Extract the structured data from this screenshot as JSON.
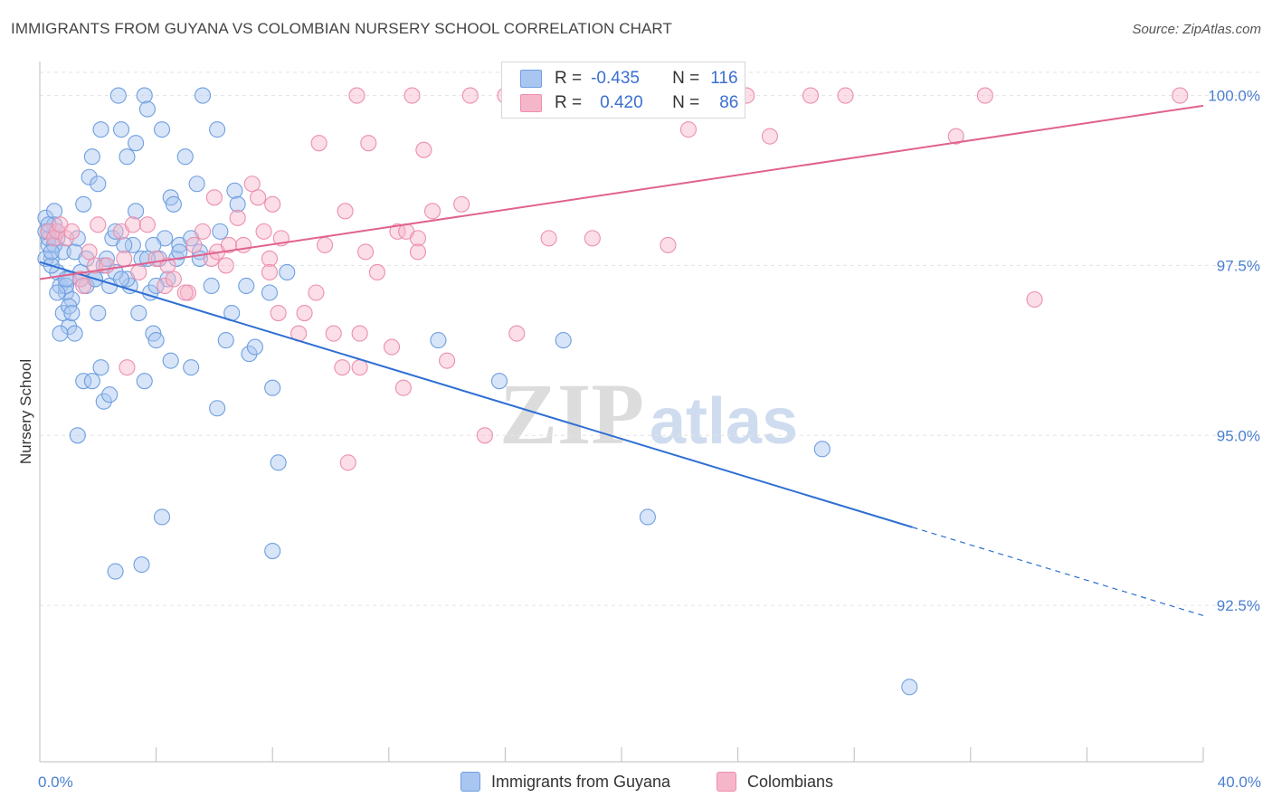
{
  "title": "IMMIGRANTS FROM GUYANA VS COLOMBIAN NURSERY SCHOOL CORRELATION CHART",
  "source": "Source: ZipAtlas.com",
  "watermark": {
    "zip": "ZIP",
    "atlas": "atlas"
  },
  "legend": {
    "rows": [
      {
        "r_label": "R =",
        "r_value": "-0.435",
        "n_label": "N =",
        "n_value": "116",
        "color": "#a9c6f0"
      },
      {
        "r_label": "R =",
        "r_value": "0.420",
        "n_label": "N =",
        "n_value": "86",
        "color": "#f6b6c9"
      }
    ]
  },
  "bottom_legend": [
    {
      "label": "Immigrants from Guyana",
      "color": "#a9c6f0"
    },
    {
      "label": "Colombians",
      "color": "#f6b6c9"
    }
  ],
  "chart_data": {
    "type": "scatter",
    "ylabel": "Nursery School",
    "xlim": [
      0,
      40
    ],
    "ylim": [
      90.2,
      100.5
    ],
    "y_ticks": [
      {
        "value": 100.0,
        "label": "100.0%"
      },
      {
        "value": 97.5,
        "label": "97.5%"
      },
      {
        "value": 95.0,
        "label": "95.0%"
      },
      {
        "value": 92.5,
        "label": "92.5%"
      }
    ],
    "x_tick_labels": [
      {
        "value": 0,
        "label": "0.0%"
      },
      {
        "value": 40,
        "label": "40.0%"
      }
    ],
    "series": [
      {
        "name": "Immigrants from Guyana",
        "color": "#6f9fe0",
        "fill": "#a9c6f0",
        "trend": {
          "x0": 0,
          "y0": 97.55,
          "x1": 30,
          "y1": 93.65,
          "dash_to_x": 40,
          "dash_to_y": 92.35,
          "color": "#2e6fd3"
        },
        "points": [
          [
            0.2,
            98.2
          ],
          [
            0.3,
            98.0
          ],
          [
            0.3,
            97.8
          ],
          [
            0.4,
            97.6
          ],
          [
            0.5,
            98.3
          ],
          [
            0.5,
            98.1
          ],
          [
            0.6,
            97.4
          ],
          [
            0.7,
            97.2
          ],
          [
            0.6,
            97.9
          ],
          [
            0.8,
            97.7
          ],
          [
            0.8,
            96.8
          ],
          [
            0.9,
            97.1
          ],
          [
            1.0,
            96.6
          ],
          [
            1.0,
            97.3
          ],
          [
            1.1,
            97.0
          ],
          [
            1.2,
            96.5
          ],
          [
            1.2,
            97.7
          ],
          [
            1.3,
            97.9
          ],
          [
            1.4,
            97.4
          ],
          [
            1.5,
            98.4
          ],
          [
            1.6,
            97.6
          ],
          [
            1.7,
            98.8
          ],
          [
            1.8,
            99.1
          ],
          [
            1.9,
            97.3
          ],
          [
            2.0,
            96.8
          ],
          [
            2.0,
            98.7
          ],
          [
            2.1,
            99.5
          ],
          [
            2.2,
            97.5
          ],
          [
            2.4,
            97.2
          ],
          [
            2.5,
            97.9
          ],
          [
            2.6,
            98.0
          ],
          [
            2.7,
            100.0
          ],
          [
            2.8,
            99.5
          ],
          [
            3.0,
            99.1
          ],
          [
            3.1,
            97.2
          ],
          [
            3.2,
            97.8
          ],
          [
            3.3,
            99.3
          ],
          [
            3.3,
            98.3
          ],
          [
            3.4,
            96.8
          ],
          [
            3.5,
            97.6
          ],
          [
            3.6,
            100.0
          ],
          [
            3.7,
            99.8
          ],
          [
            3.8,
            97.1
          ],
          [
            3.9,
            96.5
          ],
          [
            4.0,
            96.4
          ],
          [
            4.1,
            97.6
          ],
          [
            4.2,
            99.5
          ],
          [
            4.3,
            97.9
          ],
          [
            4.4,
            97.3
          ],
          [
            4.5,
            98.5
          ],
          [
            4.6,
            98.4
          ],
          [
            4.7,
            97.6
          ],
          [
            4.8,
            97.8
          ],
          [
            5.0,
            99.1
          ],
          [
            5.2,
            97.9
          ],
          [
            5.4,
            98.7
          ],
          [
            5.5,
            97.7
          ],
          [
            5.6,
            100.0
          ],
          [
            5.9,
            97.2
          ],
          [
            6.1,
            99.5
          ],
          [
            6.2,
            98.0
          ],
          [
            6.4,
            96.4
          ],
          [
            6.7,
            98.6
          ],
          [
            6.8,
            98.4
          ],
          [
            7.1,
            97.2
          ],
          [
            7.2,
            96.2
          ],
          [
            7.4,
            96.3
          ],
          [
            7.9,
            97.1
          ],
          [
            8.0,
            95.7
          ],
          [
            8.5,
            97.4
          ],
          [
            1.3,
            95.0
          ],
          [
            1.5,
            95.8
          ],
          [
            1.8,
            95.8
          ],
          [
            2.1,
            96.0
          ],
          [
            2.2,
            95.5
          ],
          [
            2.4,
            95.6
          ],
          [
            3.6,
            95.8
          ],
          [
            4.5,
            96.1
          ],
          [
            5.2,
            96.0
          ],
          [
            6.1,
            95.4
          ],
          [
            4.2,
            93.8
          ],
          [
            2.6,
            93.0
          ],
          [
            3.5,
            93.1
          ],
          [
            8.2,
            94.6
          ],
          [
            8.0,
            93.3
          ],
          [
            13.7,
            96.4
          ],
          [
            15.8,
            95.8
          ],
          [
            18.0,
            96.4
          ],
          [
            26.9,
            94.8
          ],
          [
            20.9,
            93.8
          ],
          [
            29.9,
            91.3
          ],
          [
            0.2,
            97.6
          ],
          [
            0.3,
            97.9
          ],
          [
            0.4,
            97.5
          ],
          [
            0.6,
            98.0
          ],
          [
            0.9,
            97.2
          ],
          [
            1.0,
            96.9
          ],
          [
            1.6,
            97.2
          ],
          [
            1.9,
            97.3
          ],
          [
            0.5,
            97.8
          ],
          [
            0.7,
            96.5
          ],
          [
            2.9,
            97.8
          ],
          [
            3.9,
            97.8
          ],
          [
            5.5,
            97.6
          ],
          [
            0.2,
            98.0
          ],
          [
            0.4,
            97.7
          ],
          [
            2.3,
            97.6
          ],
          [
            3.0,
            97.3
          ],
          [
            4.8,
            97.7
          ],
          [
            0.3,
            98.1
          ],
          [
            0.9,
            97.3
          ],
          [
            1.4,
            97.3
          ],
          [
            2.6,
            97.4
          ],
          [
            6.6,
            96.8
          ],
          [
            0.6,
            97.1
          ],
          [
            1.1,
            96.8
          ],
          [
            2.8,
            97.3
          ],
          [
            3.7,
            97.6
          ],
          [
            4.0,
            97.2
          ]
        ]
      },
      {
        "name": "Colombians",
        "color": "#ec8fae",
        "fill": "#f6b6c9",
        "trend": {
          "x0": 0,
          "y0": 97.3,
          "x1": 40,
          "y1": 99.85,
          "color": "#e0628e"
        },
        "points": [
          [
            0.3,
            98.0
          ],
          [
            0.5,
            97.9
          ],
          [
            0.6,
            98.0
          ],
          [
            0.7,
            98.1
          ],
          [
            0.9,
            97.9
          ],
          [
            1.1,
            98.0
          ],
          [
            1.4,
            97.3
          ],
          [
            1.5,
            97.2
          ],
          [
            1.7,
            97.7
          ],
          [
            1.9,
            97.5
          ],
          [
            2.0,
            98.1
          ],
          [
            2.3,
            97.5
          ],
          [
            2.8,
            98.0
          ],
          [
            2.9,
            97.6
          ],
          [
            3.2,
            98.1
          ],
          [
            3.4,
            97.4
          ],
          [
            3.7,
            98.1
          ],
          [
            4.0,
            97.6
          ],
          [
            4.3,
            97.2
          ],
          [
            4.4,
            97.5
          ],
          [
            4.6,
            97.3
          ],
          [
            5.1,
            97.1
          ],
          [
            5.3,
            97.8
          ],
          [
            5.6,
            98.0
          ],
          [
            5.9,
            97.6
          ],
          [
            6.0,
            98.5
          ],
          [
            6.1,
            97.7
          ],
          [
            6.4,
            97.5
          ],
          [
            6.5,
            97.8
          ],
          [
            6.8,
            98.2
          ],
          [
            7.0,
            97.8
          ],
          [
            7.3,
            98.7
          ],
          [
            7.5,
            98.5
          ],
          [
            7.7,
            98.0
          ],
          [
            7.9,
            97.6
          ],
          [
            8.0,
            98.4
          ],
          [
            8.2,
            96.8
          ],
          [
            8.3,
            97.9
          ],
          [
            8.9,
            96.5
          ],
          [
            9.1,
            96.8
          ],
          [
            9.5,
            97.1
          ],
          [
            9.8,
            97.8
          ],
          [
            10.1,
            96.5
          ],
          [
            10.5,
            98.3
          ],
          [
            11.0,
            96.5
          ],
          [
            11.2,
            97.7
          ],
          [
            11.6,
            97.4
          ],
          [
            12.1,
            96.3
          ],
          [
            12.3,
            98.0
          ],
          [
            12.6,
            98.0
          ],
          [
            13.0,
            97.9
          ],
          [
            13.5,
            98.3
          ],
          [
            14.0,
            96.1
          ],
          [
            14.5,
            98.4
          ],
          [
            15.3,
            95.0
          ],
          [
            16.4,
            96.5
          ],
          [
            17.5,
            97.9
          ],
          [
            19.0,
            97.9
          ],
          [
            21.6,
            97.8
          ],
          [
            22.3,
            99.5
          ],
          [
            25.1,
            99.4
          ],
          [
            31.5,
            99.4
          ],
          [
            34.2,
            97.0
          ],
          [
            10.9,
            100.0
          ],
          [
            12.8,
            100.0
          ],
          [
            14.8,
            100.0
          ],
          [
            16.0,
            100.0
          ],
          [
            18.0,
            100.0
          ],
          [
            19.8,
            100.0
          ],
          [
            24.3,
            100.0
          ],
          [
            26.5,
            100.0
          ],
          [
            27.7,
            100.0
          ],
          [
            32.5,
            100.0
          ],
          [
            39.2,
            100.0
          ],
          [
            9.6,
            99.3
          ],
          [
            11.3,
            99.3
          ],
          [
            13.2,
            99.2
          ],
          [
            10.4,
            96.0
          ],
          [
            11.0,
            96.0
          ],
          [
            12.5,
            95.7
          ],
          [
            13.0,
            97.7
          ],
          [
            10.6,
            94.6
          ],
          [
            3.0,
            96.0
          ],
          [
            5.0,
            97.1
          ],
          [
            7.9,
            97.4
          ]
        ]
      }
    ]
  }
}
